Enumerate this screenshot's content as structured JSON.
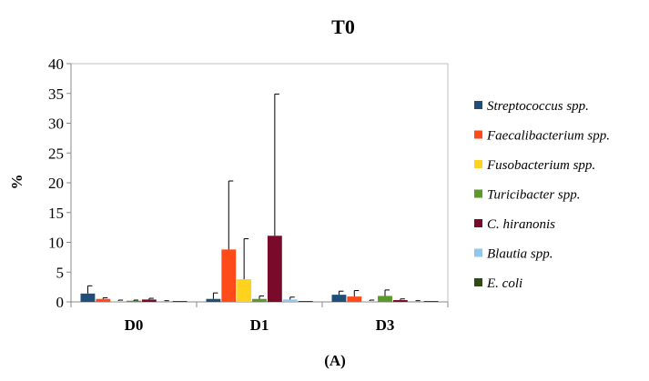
{
  "chart_data": {
    "type": "bar",
    "title": "T0",
    "xlabel": "",
    "ylabel": "%",
    "panel_label": "(A)",
    "ylim": [
      0,
      40
    ],
    "yticks": [
      0,
      5,
      10,
      15,
      20,
      25,
      30,
      35,
      40
    ],
    "grid": false,
    "legend_position": "right",
    "categories": [
      "D0",
      "D1",
      "D3"
    ],
    "series": [
      {
        "name": "Streptococcus spp.",
        "color": "#1F4E79",
        "values": [
          1.4,
          0.5,
          1.2
        ],
        "errors": [
          1.3,
          1.0,
          0.6
        ]
      },
      {
        "name": "Faecalibacterium spp.",
        "color": "#FF4A1A",
        "values": [
          0.5,
          8.8,
          0.9
        ],
        "errors": [
          0.2,
          11.5,
          1.0
        ]
      },
      {
        "name": "Fusobacterium spp.",
        "color": "#FFD21F",
        "values": [
          0.1,
          3.8,
          0.1
        ],
        "errors": [
          0.2,
          6.8,
          0.2
        ]
      },
      {
        "name": "Turicibacter spp.",
        "color": "#5A9A2A",
        "values": [
          0.2,
          0.5,
          1.0
        ],
        "errors": [
          0.1,
          0.5,
          1.0
        ]
      },
      {
        "name": "C. hiranonis",
        "color": "#7A0A2A",
        "values": [
          0.4,
          11.1,
          0.3
        ],
        "errors": [
          0.2,
          23.8,
          0.2
        ]
      },
      {
        "name": "Blautia spp.",
        "color": "#8EC8F0",
        "values": [
          0.1,
          0.4,
          0.1
        ],
        "errors": [
          0.1,
          0.4,
          0.1
        ]
      },
      {
        "name": "E. coli",
        "color": "#2F4A12",
        "values": [
          0.05,
          0.1,
          0.05
        ],
        "errors": [
          0.0,
          0.0,
          0.0
        ]
      }
    ]
  }
}
